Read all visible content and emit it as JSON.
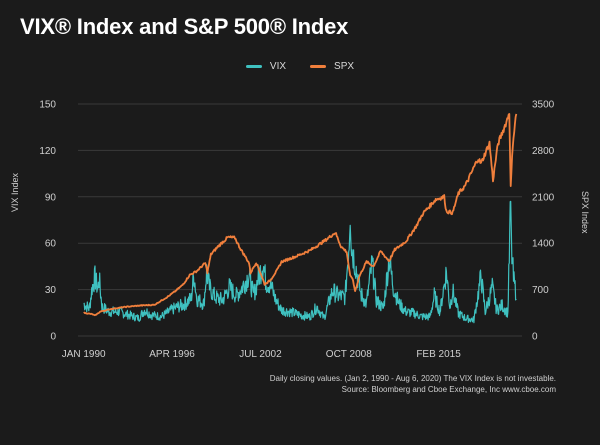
{
  "colors": {
    "background": "#1b1b1b",
    "vix": "#3fc1c0",
    "spx": "#f07f3c",
    "grid": "#3a3a3a",
    "text": "#cfcfcf"
  },
  "chart_data": {
    "type": "line",
    "title": "VIX® Index and S&P 500® Index",
    "legend": [
      "VIX",
      "SPX"
    ],
    "legend_position": "top-center",
    "xlabel": "",
    "ylabel_left": "VIX Index",
    "ylabel_right": "SPX Index",
    "x_ticks": [
      {
        "label": "JAN 1990",
        "year": 1990.0
      },
      {
        "label": "APR 1996",
        "year": 1996.25
      },
      {
        "label": "JUL 2002",
        "year": 2002.5
      },
      {
        "label": "OCT 2008",
        "year": 2008.75
      },
      {
        "label": "FEB 2015",
        "year": 2015.1
      }
    ],
    "xlim": [
      1989.6,
      2021.0
    ],
    "left_axis": {
      "min": 0,
      "max": 150,
      "ticks": [
        0,
        30,
        60,
        90,
        120,
        150
      ]
    },
    "right_axis": {
      "min": 0,
      "max": 3500,
      "ticks": [
        0,
        700,
        1400,
        2100,
        2800,
        3500
      ]
    },
    "grid": true,
    "series": [
      {
        "name": "VIX",
        "axis": "left",
        "points": [
          [
            1990.0,
            20
          ],
          [
            1990.4,
            17
          ],
          [
            1990.6,
            30
          ],
          [
            1990.8,
            36
          ],
          [
            1991.0,
            29
          ],
          [
            1991.1,
            35
          ],
          [
            1991.3,
            18
          ],
          [
            1991.8,
            15
          ],
          [
            1992.5,
            15
          ],
          [
            1993.2,
            13
          ],
          [
            1993.9,
            11
          ],
          [
            1994.3,
            16
          ],
          [
            1994.8,
            13
          ],
          [
            1995.5,
            12
          ],
          [
            1996.2,
            16
          ],
          [
            1996.6,
            18
          ],
          [
            1997.0,
            19
          ],
          [
            1997.6,
            23
          ],
          [
            1997.8,
            38
          ],
          [
            1998.0,
            23
          ],
          [
            1998.5,
            20
          ],
          [
            1998.7,
            40
          ],
          [
            1998.9,
            30
          ],
          [
            1999.3,
            24
          ],
          [
            1999.8,
            22
          ],
          [
            2000.3,
            30
          ],
          [
            2000.8,
            25
          ],
          [
            2001.2,
            30
          ],
          [
            2001.7,
            38
          ],
          [
            2002.0,
            25
          ],
          [
            2002.5,
            40
          ],
          [
            2002.7,
            45
          ],
          [
            2002.9,
            33
          ],
          [
            2003.2,
            32
          ],
          [
            2003.6,
            22
          ],
          [
            2004.0,
            16
          ],
          [
            2004.6,
            15
          ],
          [
            2005.3,
            13
          ],
          [
            2006.0,
            12
          ],
          [
            2006.5,
            18
          ],
          [
            2007.0,
            11
          ],
          [
            2007.6,
            28
          ],
          [
            2008.0,
            25
          ],
          [
            2008.5,
            24
          ],
          [
            2008.78,
            60
          ],
          [
            2008.85,
            80
          ],
          [
            2008.95,
            55
          ],
          [
            2009.2,
            45
          ],
          [
            2009.6,
            26
          ],
          [
            2010.0,
            20
          ],
          [
            2010.4,
            45
          ],
          [
            2010.7,
            22
          ],
          [
            2011.2,
            17
          ],
          [
            2011.6,
            48
          ],
          [
            2011.9,
            30
          ],
          [
            2012.3,
            20
          ],
          [
            2012.8,
            15
          ],
          [
            2013.4,
            14
          ],
          [
            2013.9,
            12
          ],
          [
            2014.5,
            12
          ],
          [
            2014.8,
            25
          ],
          [
            2015.2,
            15
          ],
          [
            2015.65,
            40
          ],
          [
            2015.9,
            18
          ],
          [
            2016.1,
            28
          ],
          [
            2016.5,
            14
          ],
          [
            2017.0,
            11
          ],
          [
            2017.6,
            10
          ],
          [
            2018.1,
            37
          ],
          [
            2018.4,
            15
          ],
          [
            2018.9,
            30
          ],
          [
            2019.2,
            16
          ],
          [
            2019.6,
            19
          ],
          [
            2020.0,
            14
          ],
          [
            2020.2,
            82
          ],
          [
            2020.25,
            55
          ],
          [
            2020.4,
            35
          ],
          [
            2020.55,
            28
          ],
          [
            2020.6,
            24
          ]
        ]
      },
      {
        "name": "SPX",
        "axis": "right",
        "points": [
          [
            1990.0,
            350
          ],
          [
            1990.6,
            330
          ],
          [
            1990.8,
            310
          ],
          [
            1991.2,
            370
          ],
          [
            1992.0,
            410
          ],
          [
            1993.0,
            440
          ],
          [
            1994.0,
            460
          ],
          [
            1995.0,
            470
          ],
          [
            1996.0,
            600
          ],
          [
            1996.5,
            680
          ],
          [
            1997.0,
            770
          ],
          [
            1997.5,
            920
          ],
          [
            1998.0,
            980
          ],
          [
            1998.6,
            1100
          ],
          [
            1998.75,
            960
          ],
          [
            1999.0,
            1230
          ],
          [
            1999.5,
            1350
          ],
          [
            2000.2,
            1490
          ],
          [
            2000.7,
            1480
          ],
          [
            2001.0,
            1350
          ],
          [
            2001.7,
            1100
          ],
          [
            2001.8,
            950
          ],
          [
            2002.2,
            1110
          ],
          [
            2002.6,
            900
          ],
          [
            2002.8,
            780
          ],
          [
            2003.2,
            840
          ],
          [
            2003.7,
            1000
          ],
          [
            2004.0,
            1120
          ],
          [
            2005.0,
            1200
          ],
          [
            2006.0,
            1290
          ],
          [
            2007.0,
            1430
          ],
          [
            2007.8,
            1560
          ],
          [
            2008.2,
            1350
          ],
          [
            2008.6,
            1270
          ],
          [
            2008.85,
            900
          ],
          [
            2009.0,
            880
          ],
          [
            2009.2,
            680
          ],
          [
            2009.5,
            900
          ],
          [
            2010.0,
            1120
          ],
          [
            2010.5,
            1050
          ],
          [
            2011.0,
            1280
          ],
          [
            2011.6,
            1130
          ],
          [
            2012.0,
            1300
          ],
          [
            2012.8,
            1430
          ],
          [
            2013.5,
            1650
          ],
          [
            2014.0,
            1850
          ],
          [
            2014.9,
            2060
          ],
          [
            2015.5,
            2100
          ],
          [
            2015.65,
            1880
          ],
          [
            2016.1,
            1860
          ],
          [
            2016.5,
            2150
          ],
          [
            2017.0,
            2270
          ],
          [
            2017.9,
            2680
          ],
          [
            2018.1,
            2600
          ],
          [
            2018.7,
            2910
          ],
          [
            2018.95,
            2350
          ],
          [
            2019.3,
            2900
          ],
          [
            2019.9,
            3230
          ],
          [
            2020.1,
            3380
          ],
          [
            2020.2,
            2240
          ],
          [
            2020.35,
            2900
          ],
          [
            2020.5,
            3200
          ],
          [
            2020.6,
            3350
          ]
        ]
      }
    ],
    "footnote": [
      "Daily closing values. (Jan 2, 1990 - Aug 6, 2020) The VIX Index is not investable.",
      "Source: Bloomberg and Cboe Exchange, Inc www.cboe.com"
    ]
  }
}
